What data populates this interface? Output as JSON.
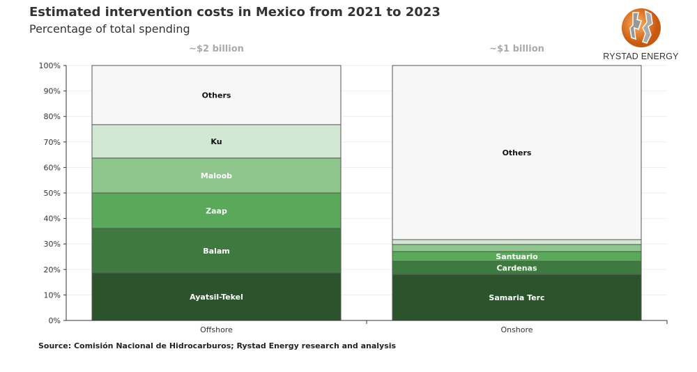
{
  "title": "Estimated intervention costs in Mexico from 2021 to 2023",
  "subtitle": "Percentage of total spending",
  "source": "Source: Comisión Nacional de Hidrocarburos; Rystad Energy research and analysis",
  "logo": {
    "text": "RYSTAD ENERGY"
  },
  "chart_data": {
    "type": "bar",
    "stacked": true,
    "percent": true,
    "categories": [
      "Offshore",
      "Onshore"
    ],
    "category_annotations": [
      "~$2 billion",
      "~$1 billion"
    ],
    "ylim": [
      0,
      100
    ],
    "yticks": [
      "0%",
      "10%",
      "20%",
      "30%",
      "40%",
      "50%",
      "60%",
      "70%",
      "80%",
      "90%",
      "100%"
    ],
    "grid": true,
    "stacks": [
      {
        "category": "Offshore",
        "segments": [
          {
            "label": "Ayatsil-Tekel",
            "value": 18.6,
            "color": "#2b542c"
          },
          {
            "label": "Balam",
            "value": 17.5,
            "color": "#3e7a40"
          },
          {
            "label": "Zaap",
            "value": 13.9,
            "color": "#5aa85a"
          },
          {
            "label": "Maloob",
            "value": 13.7,
            "color": "#8ec58c"
          },
          {
            "label": "Ku",
            "value": 13.1,
            "color": "#d2e8d2"
          },
          {
            "label": "Others",
            "value": 23.2,
            "color": "#f7f7f7"
          }
        ]
      },
      {
        "category": "Onshore",
        "segments": [
          {
            "label": "Samaria Terc",
            "value": 18.0,
            "color": "#2b542c"
          },
          {
            "label": "Cardenas",
            "value": 5.2,
            "color": "#3e7a40"
          },
          {
            "label": "Santuario",
            "value": 3.8,
            "color": "#5aa85a"
          },
          {
            "label": "",
            "value": 2.8,
            "color": "#8ec58c"
          },
          {
            "label": "",
            "value": 1.9,
            "color": "#d2e8d2"
          },
          {
            "label": "Others",
            "value": 68.3,
            "color": "#f7f7f7"
          }
        ]
      }
    ]
  }
}
